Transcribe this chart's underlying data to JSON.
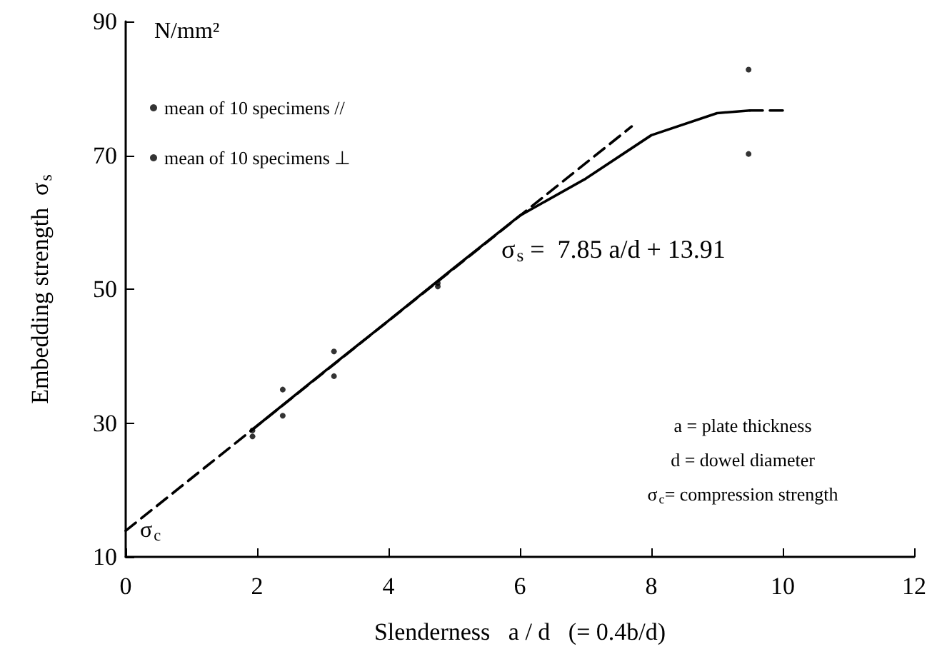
{
  "chart_data": {
    "type": "scatter",
    "xlabel": "Slenderness   a / d   (= 0.4b/d)",
    "ylabel": "Embedding strength  σ$_{s}$",
    "xlim": [
      0,
      12
    ],
    "xticks": [
      0,
      2,
      4,
      6,
      8,
      10,
      12
    ],
    "ylim": [
      10,
      90
    ],
    "yticks": [
      10,
      30,
      50,
      70,
      90
    ],
    "grid": false,
    "legend": "top left",
    "series": [
      {
        "name": "mean of 10 specimens //",
        "marker": "circle",
        "color": "#000000",
        "x": [
          1.93,
          2.39,
          3.17,
          4.75,
          9.48
        ],
        "values": [
          28.9,
          35.0,
          40.7,
          50.9,
          82.8
        ]
      },
      {
        "name": "mean of 10 specimens ⊥",
        "marker": "circle",
        "color": "#000000",
        "x": [
          1.93,
          2.39,
          3.17,
          4.75,
          9.48
        ],
        "values": [
          28.0,
          31.1,
          37.0,
          50.4,
          70.2
        ]
      },
      {
        "type": "line",
        "line_style": "dashed",
        "marker": "none",
        "color": "#000000",
        "x": [
          0,
          7.7
        ],
        "values": [
          13.9,
          74.3
        ]
      },
      {
        "type": "line",
        "line_style": "solid",
        "marker": "none",
        "color": "#000000",
        "x": [
          1.9,
          3,
          4,
          5,
          6,
          7,
          8,
          9,
          9.5
        ],
        "values": [
          28.8,
          37.5,
          45.3,
          53.2,
          61.0,
          66.5,
          73.0,
          76.3,
          76.7
        ]
      },
      {
        "type": "line",
        "line_style": "dashed",
        "marker": "none",
        "color": "#000000",
        "x": [
          9.5,
          10
        ],
        "values": [
          76.7,
          76.7
        ]
      }
    ],
    "annotations": [
      "N/mm²",
      {
        "text": "σ$_{s}$ =  7.85 a/d + 13.91",
        "x": 5.5,
        "y": 56
      },
      {
        "text": "σ$_{c}$",
        "x": 0,
        "y": 13.91
      },
      "a = plate thickness",
      "d = dowel diameter",
      "σ$_{c}$= compression strength"
    ]
  }
}
